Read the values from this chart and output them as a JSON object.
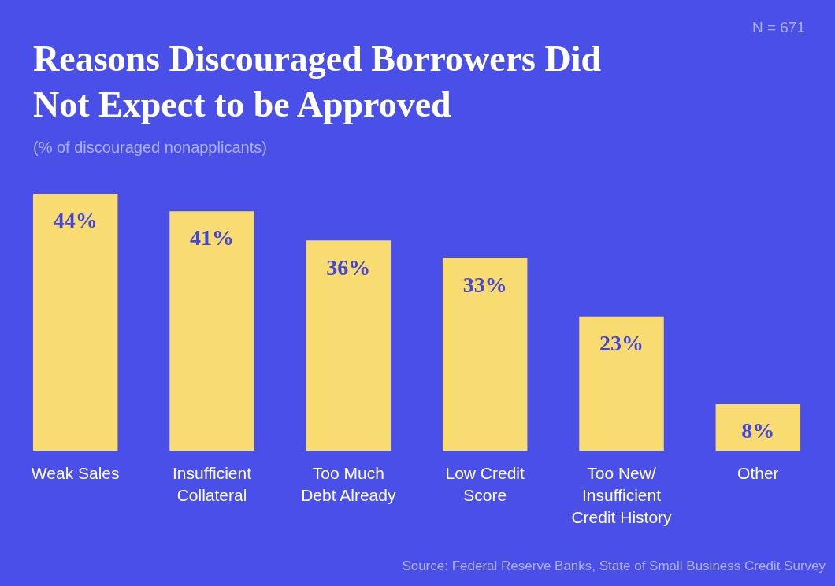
{
  "chart_data": {
    "type": "bar",
    "title": "Reasons Discouraged Borrowers Did Not Expect to be Approved",
    "subtitle": "(% of discouraged nonapplicants)",
    "categories": [
      "Weak Sales",
      "Insufficient Collateral",
      "Too Much Debt Already",
      "Low Credit Score",
      "Too New/ Insufficient Credit History",
      "Other"
    ],
    "values": [
      44,
      41,
      36,
      33,
      23,
      8
    ],
    "value_labels": [
      "44%",
      "41%",
      "36%",
      "33%",
      "23%",
      "8%"
    ],
    "color": "#f8dc72",
    "grid": false,
    "legend": false,
    "annotations": [
      "N = 671",
      "Source: Federal Reserve Banks, State of Small Business Credit Survey"
    ]
  }
}
